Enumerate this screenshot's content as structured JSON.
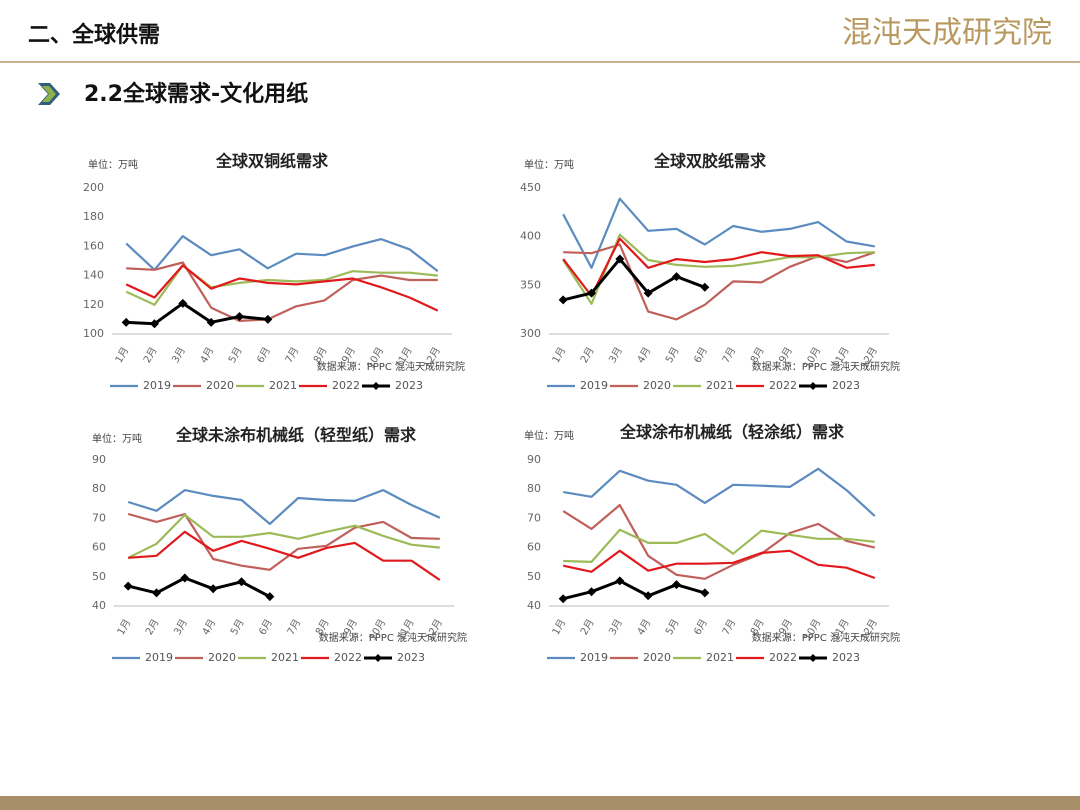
{
  "header": {
    "section": "二、全球供需",
    "logo": "混沌天成研究院",
    "subtitle": "2.2全球需求-文化用纸"
  },
  "chart_data": [
    {
      "type": "line",
      "title": "全球双铜纸需求",
      "unit": "单位：万吨",
      "source": "数据来源：PPPC 混沌天成研究院",
      "categories": [
        "1月",
        "2月",
        "3月",
        "4月",
        "5月",
        "6月",
        "7月",
        "8月",
        "9月",
        "10月",
        "11月",
        "12月"
      ],
      "ylim": [
        100,
        200
      ],
      "yticks": [
        100,
        120,
        140,
        160,
        180,
        200
      ],
      "grid": false,
      "legend": "bottom",
      "series": [
        {
          "name": "2019",
          "color": "#5b8bbf",
          "values": [
            162,
            144,
            167,
            154,
            158,
            145,
            155,
            154,
            160,
            165,
            158,
            143
          ]
        },
        {
          "name": "2020",
          "color": "#c0605a",
          "values": [
            145,
            144,
            149,
            118,
            109,
            110,
            119,
            123,
            137,
            140,
            137,
            137
          ]
        },
        {
          "name": "2021",
          "color": "#9cbb58",
          "values": [
            129,
            120,
            147,
            132,
            135,
            137,
            136,
            137,
            143,
            142,
            142,
            140
          ]
        },
        {
          "name": "2022",
          "color": "#e2191c",
          "values": [
            134,
            125,
            147,
            131,
            138,
            135,
            134,
            136,
            138,
            132,
            125,
            116
          ]
        },
        {
          "name": "2023",
          "color": "#000000",
          "marker": "diamond",
          "values": [
            108,
            107,
            121,
            108,
            112,
            110,
            null,
            null,
            null,
            null,
            null,
            null
          ]
        }
      ]
    },
    {
      "type": "line",
      "title": "全球双胶纸需求",
      "unit": "单位：万吨",
      "source": "数据来源：PPPC 混沌天成研究院",
      "categories": [
        "1月",
        "2月",
        "3月",
        "4月",
        "5月",
        "6月",
        "7月",
        "8月",
        "9月",
        "10月",
        "11月",
        "12月"
      ],
      "ylim": [
        300,
        450
      ],
      "yticks": [
        300,
        350,
        400,
        450
      ],
      "grid": false,
      "legend": "bottom",
      "series": [
        {
          "name": "2019",
          "color": "#5b8bbf",
          "values": [
            423,
            368,
            439,
            406,
            408,
            392,
            411,
            405,
            408,
            415,
            395,
            390
          ]
        },
        {
          "name": "2020",
          "color": "#c0605a",
          "values": [
            384,
            383,
            392,
            323,
            315,
            330,
            354,
            353,
            369,
            380,
            374,
            384
          ]
        },
        {
          "name": "2021",
          "color": "#9cbb58",
          "values": [
            376,
            331,
            402,
            376,
            371,
            369,
            370,
            374,
            379,
            379,
            383,
            384
          ]
        },
        {
          "name": "2022",
          "color": "#e2191c",
          "values": [
            377,
            339,
            398,
            368,
            377,
            374,
            377,
            384,
            380,
            381,
            368,
            371
          ]
        },
        {
          "name": "2023",
          "color": "#000000",
          "marker": "diamond",
          "values": [
            335,
            342,
            377,
            342,
            359,
            348,
            null,
            null,
            null,
            null,
            null,
            null
          ]
        }
      ]
    },
    {
      "type": "line",
      "title": "全球未涂布机械纸（轻型纸）需求",
      "unit": "单位：万吨",
      "source": "数据来源：PPPC 混沌天成研究院",
      "categories": [
        "1月",
        "2月",
        "3月",
        "4月",
        "5月",
        "6月",
        "7月",
        "8月",
        "9月",
        "10月",
        "11月",
        "12月"
      ],
      "ylim": [
        40,
        90
      ],
      "yticks": [
        40,
        50,
        60,
        70,
        80,
        90
      ],
      "grid": false,
      "legend": "bottom",
      "series": [
        {
          "name": "2019",
          "color": "#5b8bbf",
          "values": [
            75.6,
            72.6,
            79.7,
            77.7,
            76.3,
            68.1,
            77,
            76.3,
            76,
            79.7,
            74.6,
            70.2
          ]
        },
        {
          "name": "2020",
          "color": "#c0605a",
          "values": [
            71.5,
            68.8,
            71.5,
            56.1,
            53.8,
            52.4,
            59.6,
            60.6,
            66.8,
            68.8,
            63.3,
            63
          ]
        },
        {
          "name": "2021",
          "color": "#9cbb58",
          "values": [
            56.5,
            61.3,
            71.2,
            63.7,
            63.7,
            65,
            63,
            65.4,
            67.5,
            64,
            61,
            60
          ]
        },
        {
          "name": "2022",
          "color": "#e2191c",
          "values": [
            56.5,
            57.2,
            65.4,
            58.9,
            62.3,
            59.6,
            56.5,
            59.9,
            61.6,
            55.5,
            55.5,
            48.9
          ]
        },
        {
          "name": "2023",
          "color": "#000000",
          "marker": "diamond",
          "values": [
            46.8,
            44.5,
            49.6,
            45.9,
            48.3,
            43.2,
            null,
            null,
            null,
            null,
            null,
            null
          ]
        }
      ]
    },
    {
      "type": "line",
      "title": "全球涂布机械纸（轻涂纸）需求",
      "unit": "单位：万吨",
      "source": "数据来源：PPPC 混沌天成研究院",
      "categories": [
        "1月",
        "2月",
        "3月",
        "4月",
        "5月",
        "6月",
        "7月",
        "8月",
        "9月",
        "10月",
        "11月",
        "12月"
      ],
      "ylim": [
        40,
        90
      ],
      "yticks": [
        40,
        50,
        60,
        70,
        80,
        90
      ],
      "grid": false,
      "legend": "bottom",
      "series": [
        {
          "name": "2019",
          "color": "#5b8bbf",
          "values": [
            79,
            77.4,
            86.3,
            82.9,
            81.5,
            75.3,
            81.5,
            81.2,
            80.8,
            87,
            79.7,
            70.8
          ]
        },
        {
          "name": "2020",
          "color": "#c0605a",
          "values": [
            72.5,
            66.4,
            74.6,
            57.2,
            50.7,
            49.3,
            54.1,
            57.9,
            65,
            68.1,
            62.3,
            60
          ]
        },
        {
          "name": "2021",
          "color": "#9cbb58",
          "values": [
            55.4,
            55.1,
            66.1,
            61.6,
            61.6,
            64.7,
            57.9,
            65.8,
            64.4,
            63,
            63,
            62
          ]
        },
        {
          "name": "2022",
          "color": "#e2191c",
          "values": [
            53.8,
            51.7,
            58.9,
            52.1,
            54.5,
            54.5,
            54.8,
            58.2,
            58.9,
            54.1,
            53.1,
            49.6
          ]
        },
        {
          "name": "2023",
          "color": "#000000",
          "marker": "diamond",
          "values": [
            42.5,
            44.9,
            48.6,
            43.5,
            47.3,
            44.5,
            null,
            null,
            null,
            null,
            null,
            null
          ]
        }
      ]
    }
  ]
}
